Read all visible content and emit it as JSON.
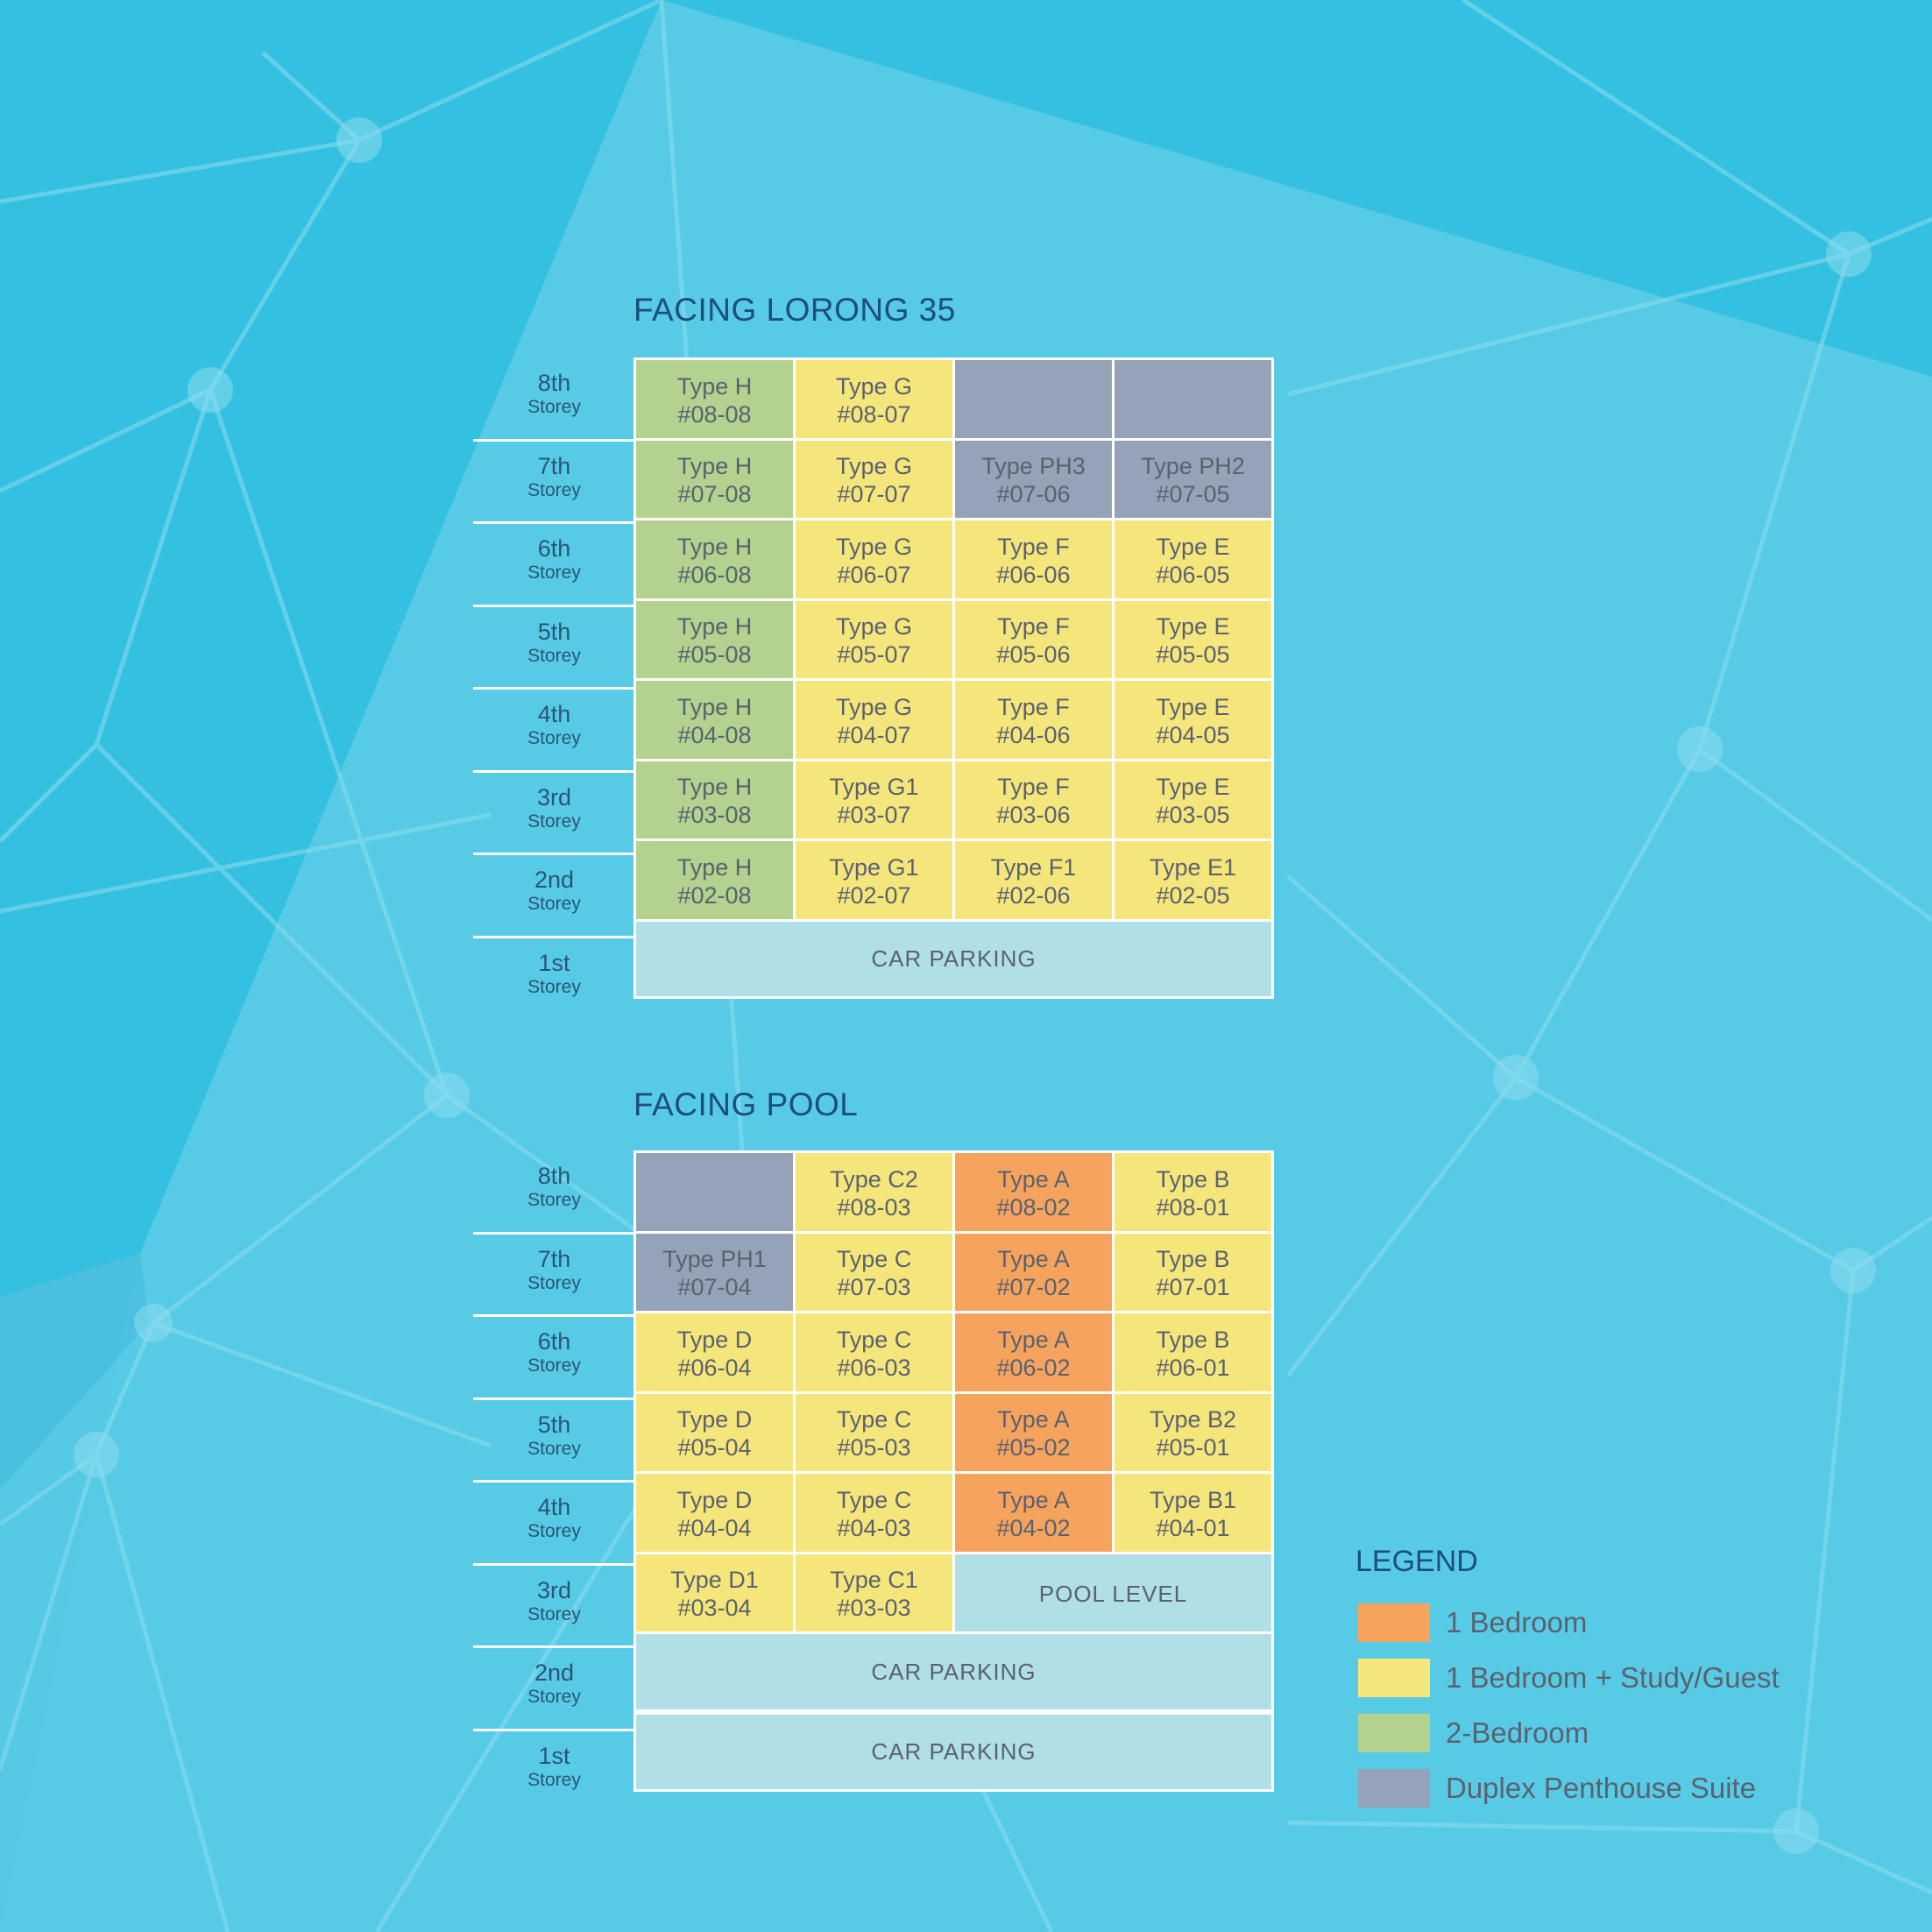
{
  "colors": {
    "background": "#34c1e1",
    "one_bedroom": "#f6a35e",
    "one_bedroom_study": "#f5e67c",
    "two_bedroom": "#b3d18f",
    "duplex_penthouse": "#94a3b8",
    "car_parking": "#b1dfe6",
    "title": "#1b4f7c"
  },
  "storey_label": "Storey",
  "lorong": {
    "title": "FACING LORONG 35",
    "rows": [
      {
        "storey": "8th",
        "cells": [
          {
            "type": "Type H",
            "unit": "#08-08",
            "category": "two"
          },
          {
            "type": "Type G",
            "unit": "#08-07",
            "category": "study"
          },
          {
            "type": "",
            "unit": "",
            "category": "ph"
          },
          {
            "type": "",
            "unit": "",
            "category": "ph"
          }
        ]
      },
      {
        "storey": "7th",
        "cells": [
          {
            "type": "Type H",
            "unit": "#07-08",
            "category": "two"
          },
          {
            "type": "Type G",
            "unit": "#07-07",
            "category": "study"
          },
          {
            "type": "Type PH3",
            "unit": "#07-06",
            "category": "ph"
          },
          {
            "type": "Type PH2",
            "unit": "#07-05",
            "category": "ph"
          }
        ]
      },
      {
        "storey": "6th",
        "cells": [
          {
            "type": "Type H",
            "unit": "#06-08",
            "category": "two"
          },
          {
            "type": "Type G",
            "unit": "#06-07",
            "category": "study"
          },
          {
            "type": "Type F",
            "unit": "#06-06",
            "category": "study"
          },
          {
            "type": "Type E",
            "unit": "#06-05",
            "category": "study"
          }
        ]
      },
      {
        "storey": "5th",
        "cells": [
          {
            "type": "Type H",
            "unit": "#05-08",
            "category": "two"
          },
          {
            "type": "Type G",
            "unit": "#05-07",
            "category": "study"
          },
          {
            "type": "Type F",
            "unit": "#05-06",
            "category": "study"
          },
          {
            "type": "Type E",
            "unit": "#05-05",
            "category": "study"
          }
        ]
      },
      {
        "storey": "4th",
        "cells": [
          {
            "type": "Type H",
            "unit": "#04-08",
            "category": "two"
          },
          {
            "type": "Type G",
            "unit": "#04-07",
            "category": "study"
          },
          {
            "type": "Type F",
            "unit": "#04-06",
            "category": "study"
          },
          {
            "type": "Type E",
            "unit": "#04-05",
            "category": "study"
          }
        ]
      },
      {
        "storey": "3rd",
        "cells": [
          {
            "type": "Type H",
            "unit": "#03-08",
            "category": "two"
          },
          {
            "type": "Type G1",
            "unit": "#03-07",
            "category": "study"
          },
          {
            "type": "Type F",
            "unit": "#03-06",
            "category": "study"
          },
          {
            "type": "Type E",
            "unit": "#03-05",
            "category": "study"
          }
        ]
      },
      {
        "storey": "2nd",
        "cells": [
          {
            "type": "Type H",
            "unit": "#02-08",
            "category": "two"
          },
          {
            "type": "Type G1",
            "unit": "#02-07",
            "category": "study"
          },
          {
            "type": "Type F1",
            "unit": "#02-06",
            "category": "study"
          },
          {
            "type": "Type E1",
            "unit": "#02-05",
            "category": "study"
          }
        ]
      },
      {
        "storey": "1st",
        "cells": [
          {
            "type": "CAR PARKING",
            "unit": "",
            "category": "park",
            "span": 4
          }
        ]
      }
    ]
  },
  "pool": {
    "title": "FACING POOL",
    "rows": [
      {
        "storey": "8th",
        "cells": [
          {
            "type": "",
            "unit": "",
            "category": "ph"
          },
          {
            "type": "Type C2",
            "unit": "#08-03",
            "category": "study"
          },
          {
            "type": "Type A",
            "unit": "#08-02",
            "category": "one"
          },
          {
            "type": "Type B",
            "unit": "#08-01",
            "category": "study"
          }
        ]
      },
      {
        "storey": "7th",
        "cells": [
          {
            "type": "Type PH1",
            "unit": "#07-04",
            "category": "ph"
          },
          {
            "type": "Type C",
            "unit": "#07-03",
            "category": "study"
          },
          {
            "type": "Type A",
            "unit": "#07-02",
            "category": "one"
          },
          {
            "type": "Type B",
            "unit": "#07-01",
            "category": "study"
          }
        ]
      },
      {
        "storey": "6th",
        "cells": [
          {
            "type": "Type D",
            "unit": "#06-04",
            "category": "study"
          },
          {
            "type": "Type C",
            "unit": "#06-03",
            "category": "study"
          },
          {
            "type": "Type A",
            "unit": "#06-02",
            "category": "one"
          },
          {
            "type": "Type B",
            "unit": "#06-01",
            "category": "study"
          }
        ]
      },
      {
        "storey": "5th",
        "cells": [
          {
            "type": "Type D",
            "unit": "#05-04",
            "category": "study"
          },
          {
            "type": "Type C",
            "unit": "#05-03",
            "category": "study"
          },
          {
            "type": "Type A",
            "unit": "#05-02",
            "category": "one"
          },
          {
            "type": "Type B2",
            "unit": "#05-01",
            "category": "study"
          }
        ]
      },
      {
        "storey": "4th",
        "cells": [
          {
            "type": "Type D",
            "unit": "#04-04",
            "category": "study"
          },
          {
            "type": "Type C",
            "unit": "#04-03",
            "category": "study"
          },
          {
            "type": "Type A",
            "unit": "#04-02",
            "category": "one"
          },
          {
            "type": "Type B1",
            "unit": "#04-01",
            "category": "study"
          }
        ]
      },
      {
        "storey": "3rd",
        "cells": [
          {
            "type": "Type D1",
            "unit": "#03-04",
            "category": "study"
          },
          {
            "type": "Type C1",
            "unit": "#03-03",
            "category": "study"
          },
          {
            "type": "POOL LEVEL",
            "unit": "",
            "category": "park",
            "span": 2
          }
        ]
      },
      {
        "storey": "2nd",
        "cells": [
          {
            "type": "CAR PARKING",
            "unit": "",
            "category": "park",
            "span": 4
          }
        ]
      },
      {
        "storey": "1st",
        "cells": [
          {
            "type": "CAR PARKING",
            "unit": "",
            "category": "park",
            "span": 4
          }
        ]
      }
    ]
  },
  "legend": {
    "title": "LEGEND",
    "items": [
      {
        "label": "1 Bedroom",
        "category": "one"
      },
      {
        "label": "1 Bedroom + Study/Guest",
        "category": "study"
      },
      {
        "label": "2-Bedroom",
        "category": "two"
      },
      {
        "label": "Duplex Penthouse Suite",
        "category": "ph"
      }
    ]
  }
}
